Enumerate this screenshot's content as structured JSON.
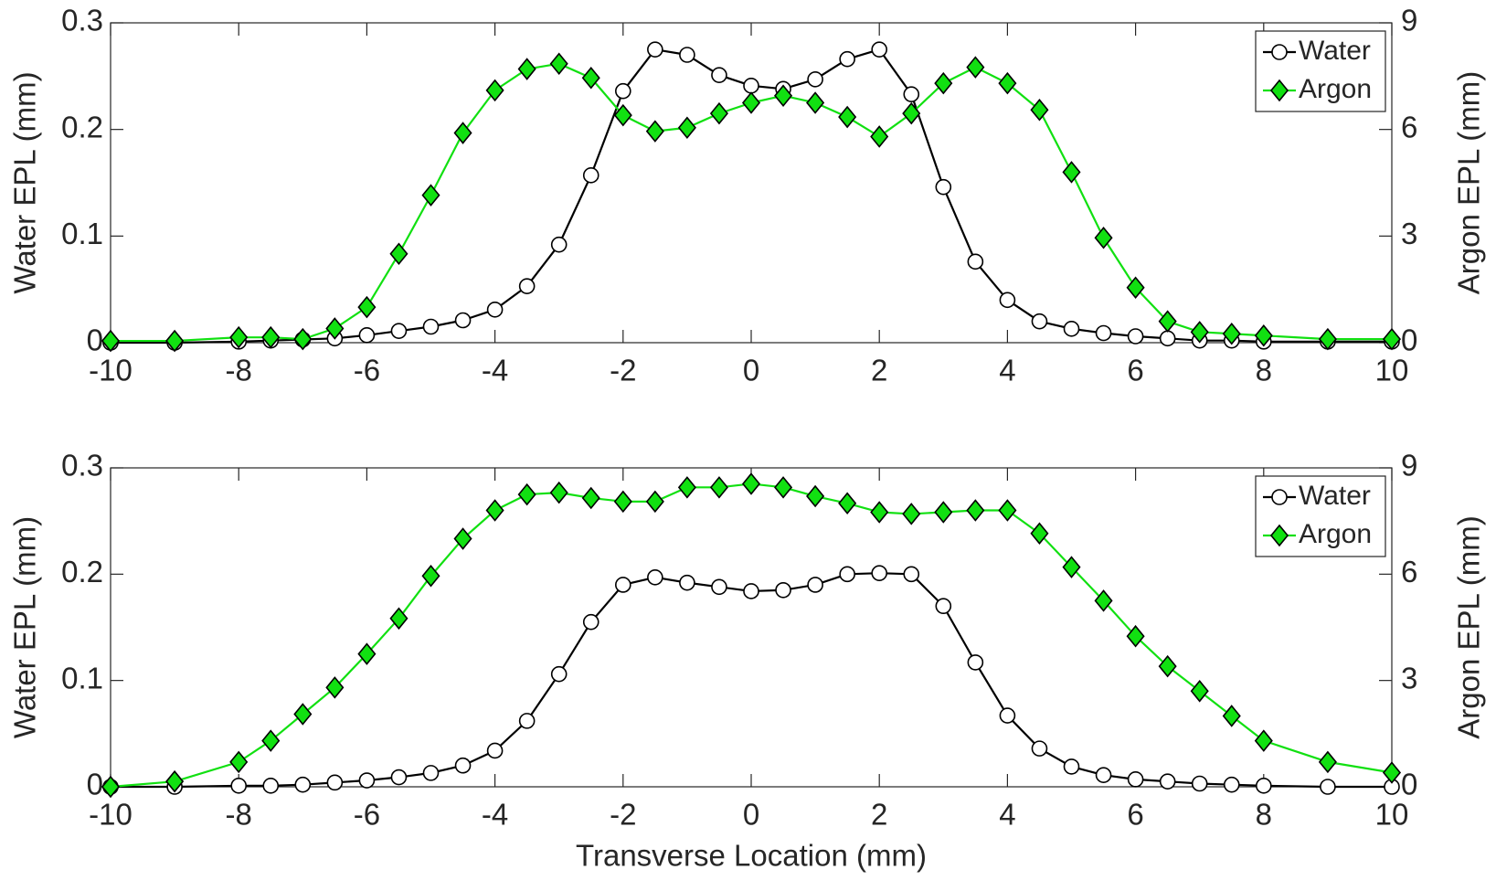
{
  "chart_data": [
    {
      "type": "line",
      "x": [
        -10,
        -9,
        -8,
        -7.5,
        -7,
        -6.5,
        -6,
        -5.5,
        -5,
        -4.5,
        -4,
        -3.5,
        -3,
        -2.5,
        -2,
        -1.5,
        -1,
        -0.5,
        0,
        0.5,
        1,
        1.5,
        2,
        2.5,
        3,
        3.5,
        4,
        4.5,
        5,
        5.5,
        6,
        6.5,
        7,
        7.5,
        8,
        9,
        10
      ],
      "xlim": [
        -10,
        10
      ],
      "xticks": [
        -10,
        -8,
        -6,
        -4,
        -2,
        0,
        2,
        4,
        6,
        8,
        10
      ],
      "ylabel": "Water EPL  (mm)",
      "ylim": [
        0,
        0.3
      ],
      "yticks": [
        0,
        0.1,
        0.2,
        0.3
      ],
      "y2label": "Argon EPL  (mm)",
      "y2lim": [
        0,
        9
      ],
      "y2ticks": [
        0,
        3,
        6,
        9
      ],
      "legend": "upper right",
      "series": [
        {
          "name": "Water",
          "color": "#000000",
          "marker": "circle",
          "values": [
            0,
            0,
            0.001,
            0.002,
            0.003,
            0.004,
            0.007,
            0.011,
            0.015,
            0.021,
            0.031,
            0.053,
            0.092,
            0.157,
            0.236,
            0.275,
            0.27,
            0.251,
            0.241,
            0.238,
            0.247,
            0.266,
            0.275,
            0.233,
            0.146,
            0.076,
            0.04,
            0.02,
            0.013,
            0.009,
            0.006,
            0.004,
            0.002,
            0.002,
            0.001,
            0.001,
            0.001
          ]
        },
        {
          "name": "Argon",
          "color": "#11e011",
          "marker": "diamond",
          "axis": "y2",
          "values": [
            0.05,
            0.05,
            0.15,
            0.15,
            0.1,
            0.4,
            1.0,
            2.5,
            4.15,
            5.9,
            7.1,
            7.7,
            7.85,
            7.45,
            6.4,
            5.95,
            6.05,
            6.45,
            6.75,
            6.95,
            6.75,
            6.35,
            5.8,
            6.45,
            7.3,
            7.75,
            7.3,
            6.55,
            4.8,
            2.95,
            1.55,
            0.6,
            0.3,
            0.25,
            0.2,
            0.1,
            0.1
          ]
        }
      ]
    },
    {
      "type": "line",
      "x": [
        -10,
        -9,
        -8,
        -7.5,
        -7,
        -6.5,
        -6,
        -5.5,
        -5,
        -4.5,
        -4,
        -3.5,
        -3,
        -2.5,
        -2,
        -1.5,
        -1,
        -0.5,
        0,
        0.5,
        1,
        1.5,
        2,
        2.5,
        3,
        3.5,
        4,
        4.5,
        5,
        5.5,
        6,
        6.5,
        7,
        7.5,
        8,
        9,
        10
      ],
      "xlim": [
        -10,
        10
      ],
      "xticks": [
        -10,
        -8,
        -6,
        -4,
        -2,
        0,
        2,
        4,
        6,
        8,
        10
      ],
      "xlabel": "Transverse Location  (mm)",
      "ylabel": "Water EPL  (mm)",
      "ylim": [
        0,
        0.3
      ],
      "yticks": [
        0,
        0.1,
        0.2,
        0.3
      ],
      "y2label": "Argon EPL  (mm)",
      "y2lim": [
        0,
        9
      ],
      "y2ticks": [
        0,
        3,
        6,
        9
      ],
      "legend": "upper right",
      "series": [
        {
          "name": "Water",
          "color": "#000000",
          "marker": "circle",
          "values": [
            0,
            0,
            0.001,
            0.001,
            0.002,
            0.004,
            0.006,
            0.009,
            0.013,
            0.02,
            0.034,
            0.062,
            0.106,
            0.155,
            0.19,
            0.197,
            0.192,
            0.188,
            0.184,
            0.185,
            0.19,
            0.2,
            0.201,
            0.2,
            0.17,
            0.117,
            0.067,
            0.036,
            0.019,
            0.011,
            0.007,
            0.005,
            0.003,
            0.002,
            0.001,
            0,
            0
          ]
        },
        {
          "name": "Argon",
          "color": "#11e011",
          "marker": "diamond",
          "axis": "y2",
          "values": [
            0,
            0.15,
            0.7,
            1.3,
            2.05,
            2.8,
            3.75,
            4.75,
            5.95,
            7.0,
            7.8,
            8.25,
            8.3,
            8.15,
            8.05,
            8.05,
            8.45,
            8.45,
            8.55,
            8.45,
            8.2,
            8.0,
            7.75,
            7.7,
            7.75,
            7.8,
            7.8,
            7.15,
            6.2,
            5.25,
            4.25,
            3.4,
            2.7,
            2.0,
            1.3,
            0.7,
            0.4
          ]
        }
      ]
    }
  ]
}
